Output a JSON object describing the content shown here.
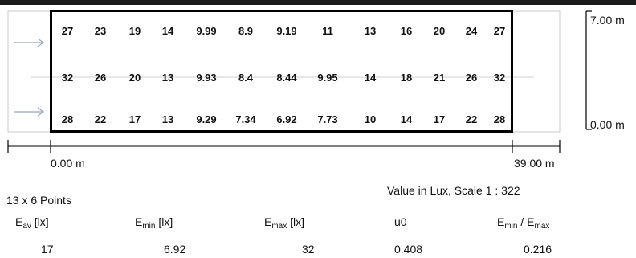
{
  "dimensions": {
    "top_label": "7.00 m",
    "bottom_label": "0.00 m",
    "x_start_label": "0.00 m",
    "x_end_label": "39.00 m"
  },
  "grid_values": [
    [
      "27",
      "23",
      "19",
      "14",
      "9.99",
      "8.9",
      "9.19",
      "11",
      "13",
      "16",
      "20",
      "24",
      "27"
    ],
    [
      "32",
      "26",
      "20",
      "13",
      "9.93",
      "8.4",
      "8.44",
      "9.95",
      "14",
      "18",
      "21",
      "26",
      "32"
    ],
    [
      "28",
      "22",
      "17",
      "13",
      "9.29",
      "7.34",
      "6.92",
      "7.73",
      "10",
      "14",
      "17",
      "22",
      "28"
    ]
  ],
  "info": {
    "points_label": "13 x 6 Points",
    "scale_label": "Value in Lux, Scale 1 : 322"
  },
  "stats": {
    "eav_label": "E",
    "eav_sub": "av",
    "eav_unit": " [lx]",
    "emin_label": "E",
    "emin_sub": "min",
    "emin_unit": " [lx]",
    "emax_label": "E",
    "emax_sub": "max",
    "emax_unit": " [lx]",
    "u0_label": "u0",
    "ratio_label_a": "E",
    "ratio_sub_a": "min",
    "ratio_sep": " / ",
    "ratio_label_b": "E",
    "ratio_sub_b": "max",
    "eav_value": "17",
    "emin_value": "6.92",
    "emax_value": "32",
    "u0_value": "0.408",
    "ratio_value": "0.216"
  }
}
